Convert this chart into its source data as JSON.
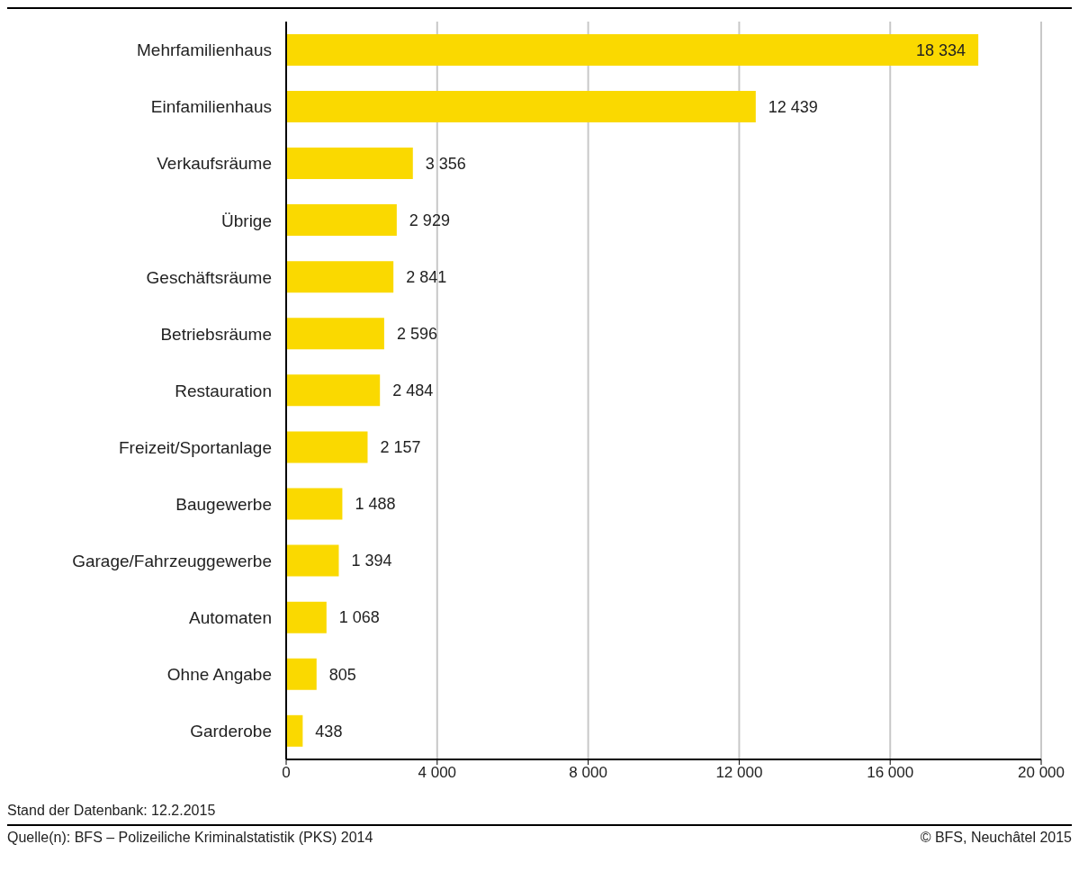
{
  "chart_data": {
    "type": "bar",
    "orientation": "horizontal",
    "categories": [
      "Mehrfamilienhaus",
      "Einfamilienhaus",
      "Verkaufsräume",
      "Übrige",
      "Geschäftsräume",
      "Betriebsräume",
      "Restauration",
      "Freizeit/Sportanlage",
      "Baugewerbe",
      "Garage/Fahrzeuggewerbe",
      "Automaten",
      "Ohne Angabe",
      "Garderobe"
    ],
    "values": [
      18334,
      12439,
      3356,
      2929,
      2841,
      2596,
      2484,
      2157,
      1488,
      1394,
      1068,
      805,
      438
    ],
    "value_labels": [
      "18 334",
      "12 439",
      "3 356",
      "2 929",
      "2 841",
      "2 596",
      "2 484",
      "2 157",
      "1 488",
      "1 394",
      "1 068",
      "805",
      "438"
    ],
    "color": "#fad900",
    "xlim": [
      0,
      20000
    ],
    "xticks": [
      0,
      {
        "value": 4000,
        "label": "4 000"
      },
      {
        "value": 8000,
        "label": "8 000"
      },
      {
        "value": 12000,
        "label": "12 000"
      },
      {
        "value": 16000,
        "label": "16 000"
      },
      {
        "value": 20000,
        "label": "20 000"
      }
    ],
    "grid": "x",
    "legend": false,
    "annotations": [
      "Stand der Datenbank: 12.2.2015",
      "Quelle(n): BFS – Polizeiliche Kriminalstatistik (PKS) 2014",
      "© BFS, Neuchâtel 2015"
    ]
  }
}
